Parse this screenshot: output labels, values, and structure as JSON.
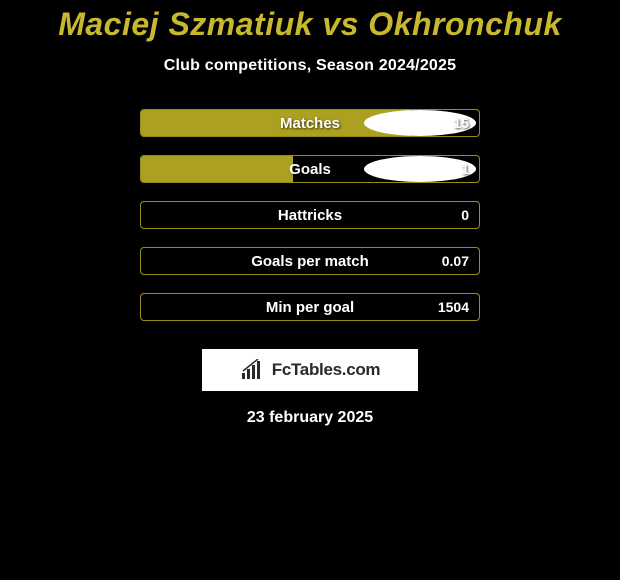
{
  "title": "Maciej Szmatiuk vs Okhronchuk",
  "subtitle": "Club competitions, Season 2024/2025",
  "stats": [
    {
      "label": "Matches",
      "value": "15",
      "fill_pct": 80,
      "show_ellipse_left": true,
      "show_ellipse_right": true
    },
    {
      "label": "Goals",
      "value": "1",
      "fill_pct": 45,
      "show_ellipse_left": true,
      "show_ellipse_right": true
    },
    {
      "label": "Hattricks",
      "value": "0",
      "fill_pct": 0,
      "show_ellipse_left": false,
      "show_ellipse_right": false
    },
    {
      "label": "Goals per match",
      "value": "0.07",
      "fill_pct": 0,
      "show_ellipse_left": false,
      "show_ellipse_right": false
    },
    {
      "label": "Min per goal",
      "value": "1504",
      "fill_pct": 0,
      "show_ellipse_left": false,
      "show_ellipse_right": false
    }
  ],
  "colors": {
    "title_color": "#c8b82e",
    "bar_fill": "#aba020",
    "bar_border": "#9a8e1a",
    "background": "#000000",
    "ellipse_fill": "#ffffff"
  },
  "logo_text": "FcTables.com",
  "date": "23 february 2025"
}
